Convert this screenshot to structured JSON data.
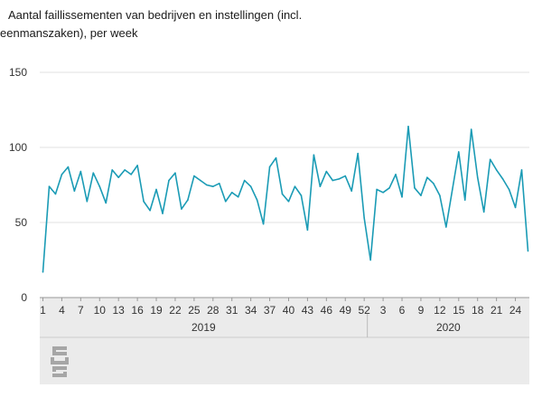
{
  "chart_data": {
    "type": "line",
    "title_lines": [
      "Aantal faillissementen van bedrijven en instellingen (incl.",
      "eenmanszaken), per week"
    ],
    "xlabel": "",
    "ylabel": "",
    "ylim": [
      0,
      150
    ],
    "yticks": [
      0,
      50,
      100,
      150
    ],
    "x_tick_labels": [
      "1",
      "4",
      "7",
      "10",
      "13",
      "16",
      "19",
      "22",
      "25",
      "28",
      "31",
      "34",
      "37",
      "40",
      "43",
      "46",
      "49",
      "52",
      "3",
      "6",
      "9",
      "12",
      "15",
      "18",
      "21",
      "24"
    ],
    "years": [
      "2019",
      "2020"
    ],
    "grid": true,
    "series": [
      {
        "color": "#1a9bb5",
        "values_2019": [
          17,
          74,
          69,
          82,
          87,
          71,
          84,
          64,
          83,
          74,
          63,
          85,
          80,
          85,
          82,
          88,
          64,
          58,
          72,
          56,
          78,
          83,
          59,
          65,
          81,
          78,
          75,
          74,
          76,
          64,
          70,
          67,
          78,
          74,
          65,
          49,
          87,
          93,
          69,
          64,
          74,
          68,
          45,
          95,
          74,
          84,
          78,
          79,
          81,
          71,
          96,
          53
        ],
        "values_2020": [
          25,
          72,
          70,
          73,
          82,
          67,
          114,
          73,
          68,
          80,
          76,
          68,
          47,
          72,
          97,
          65,
          112,
          80,
          57,
          92,
          85,
          79,
          72,
          60,
          85,
          31
        ]
      }
    ]
  },
  "logo": {
    "name": "cbs"
  }
}
